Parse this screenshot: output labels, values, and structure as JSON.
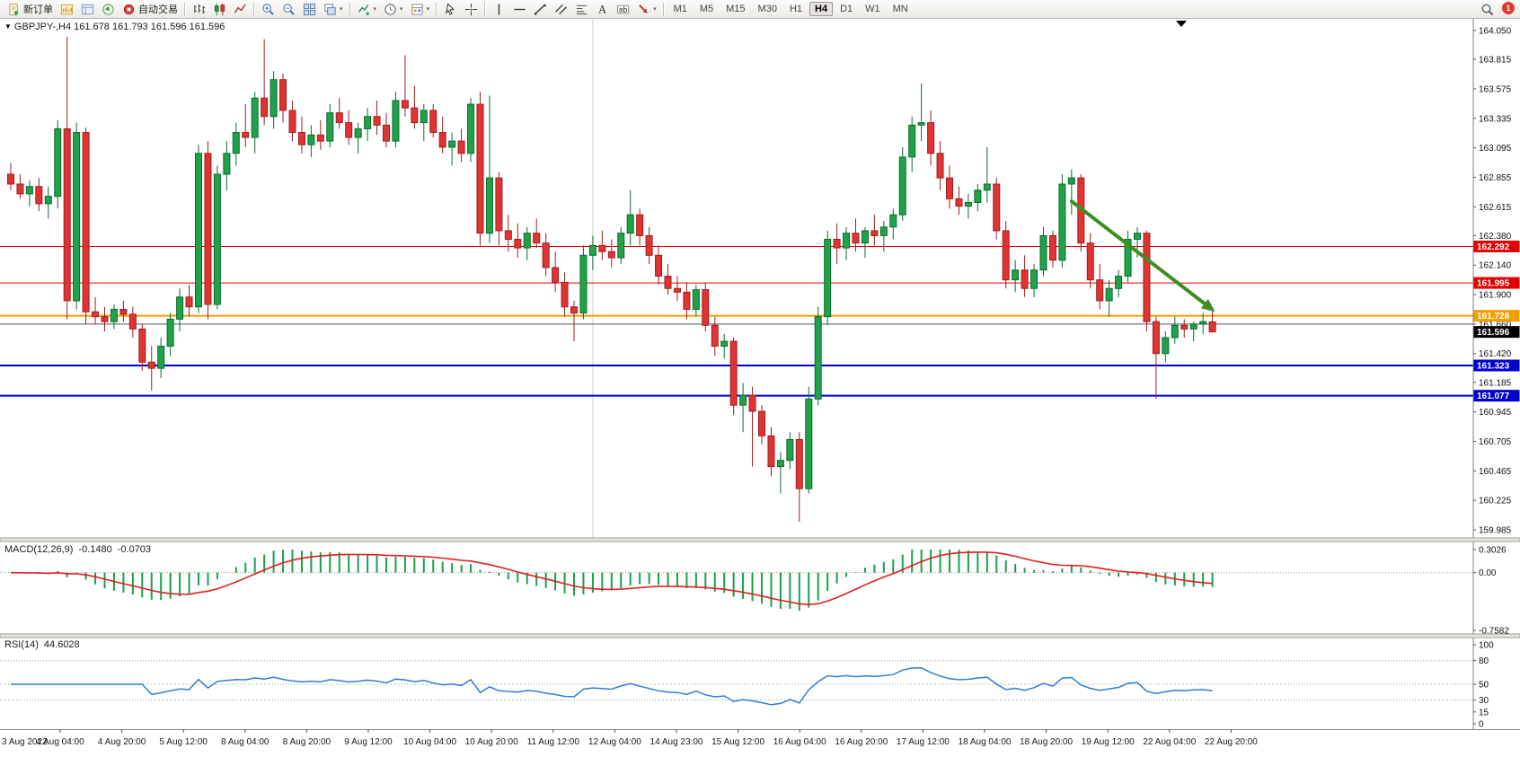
{
  "app": {
    "badge_count": "1"
  },
  "toolbar": {
    "caret_glyph": "▾",
    "items": [
      {
        "t": "btn",
        "name": "new-order-button",
        "icon": "new-order",
        "label": "新订单"
      },
      {
        "t": "icon",
        "name": "market-watch-icon",
        "icon": "market-watch"
      },
      {
        "t": "icon",
        "name": "data-window-icon",
        "icon": "data-window"
      },
      {
        "t": "icon",
        "name": "navigator-icon",
        "icon": "navigator"
      },
      {
        "t": "btn",
        "name": "auto-trading-button",
        "icon": "auto-trading",
        "label": "自动交易"
      },
      {
        "t": "sep",
        "name": "toolbar-separator"
      },
      {
        "t": "icon",
        "name": "bar-chart-icon",
        "icon": "bars"
      },
      {
        "t": "icon",
        "name": "candlestick-chart-icon",
        "icon": "candles"
      },
      {
        "t": "icon",
        "name": "line-chart-icon",
        "icon": "line"
      },
      {
        "t": "sep",
        "name": "toolbar-separator"
      },
      {
        "t": "icon",
        "name": "zoom-in-icon",
        "icon": "zoom-in"
      },
      {
        "t": "icon",
        "name": "zoom-out-icon",
        "icon": "zoom-out"
      },
      {
        "t": "icon",
        "name": "tile-windows-icon",
        "icon": "tile"
      },
      {
        "t": "icon",
        "name": "auto-arrange-icon",
        "icon": "cascade",
        "caret": true
      },
      {
        "t": "sep",
        "name": "toolbar-separator"
      },
      {
        "t": "icon",
        "name": "indicators-icon",
        "icon": "indicators",
        "caret": true
      },
      {
        "t": "icon",
        "name": "periods-icon",
        "icon": "clock",
        "caret": true
      },
      {
        "t": "icon",
        "name": "templates-icon",
        "icon": "templates",
        "caret": true
      },
      {
        "t": "sep",
        "name": "toolbar-separator"
      },
      {
        "t": "icon",
        "name": "cursor-icon",
        "icon": "cursor"
      },
      {
        "t": "icon",
        "name": "crosshair-icon",
        "icon": "crosshair"
      },
      {
        "t": "sep",
        "name": "toolbar-separator"
      },
      {
        "t": "icon",
        "name": "vertical-line-icon",
        "icon": "vline"
      },
      {
        "t": "icon",
        "name": "horizontal-line-icon",
        "icon": "hline"
      },
      {
        "t": "icon",
        "name": "trendline-icon",
        "icon": "tline"
      },
      {
        "t": "icon",
        "name": "equidistant-channel-icon",
        "icon": "channel"
      },
      {
        "t": "icon",
        "name": "fibonacci-icon",
        "icon": "fibo"
      },
      {
        "t": "icon",
        "name": "text-icon",
        "icon": "textA"
      },
      {
        "t": "icon",
        "name": "text-label-icon",
        "icon": "label"
      },
      {
        "t": "icon",
        "name": "arrows-icon",
        "icon": "arrows",
        "caret": true
      },
      {
        "t": "sep",
        "name": "toolbar-separator"
      },
      {
        "t": "tf",
        "name": "timeframe-m1-button",
        "label": "M1"
      },
      {
        "t": "tf",
        "name": "timeframe-m5-button",
        "label": "M5"
      },
      {
        "t": "tf",
        "name": "timeframe-m15-button",
        "label": "M15"
      },
      {
        "t": "tf",
        "name": "timeframe-m30-button",
        "label": "M30"
      },
      {
        "t": "tf",
        "name": "timeframe-h1-button",
        "label": "H1"
      },
      {
        "t": "tf",
        "name": "timeframe-h4-button",
        "label": "H4",
        "active": true
      },
      {
        "t": "tf",
        "name": "timeframe-d1-button",
        "label": "D1"
      },
      {
        "t": "tf",
        "name": "timeframe-w1-button",
        "label": "W1"
      },
      {
        "t": "tf",
        "name": "timeframe-mn-button",
        "label": "MN"
      },
      {
        "t": "push",
        "name": "toolbar-spacer"
      },
      {
        "t": "icon",
        "name": "search-icon",
        "icon": "search"
      },
      {
        "t": "badge",
        "name": "notification-badge",
        "label": "1"
      }
    ]
  },
  "chart": {
    "menu_glyph": "▼",
    "symbol_header": "GBPJPY-,H4  161.678 161.793 161.596 161.596"
  },
  "macd": {
    "name": "MACD(12,26,9)",
    "value_main": "-0.1480",
    "value_signal": "-0.0703",
    "axis_labels": [
      {
        "text": "0.3026",
        "value": 0.3026
      },
      {
        "text": "0.00",
        "value": 0
      },
      {
        "text": "-0.7582",
        "value": -0.7582
      }
    ]
  },
  "rsi": {
    "name": "RSI(14)",
    "value": "44.6028",
    "levels": [
      80,
      50,
      30
    ],
    "axis_labels": [
      {
        "text": "100",
        "value": 100
      },
      {
        "text": "80",
        "value": 80
      },
      {
        "text": "50",
        "value": 50
      },
      {
        "text": "30",
        "value": 30
      },
      {
        "text": "15",
        "value": 15
      },
      {
        "text": "0",
        "value": 0
      }
    ]
  },
  "chart_data": {
    "type": "candlestick",
    "symbol": "GBPJPY-",
    "timeframe": "H4",
    "current_ohlc": {
      "open": 161.678,
      "high": 161.793,
      "low": 161.596,
      "close": 161.596
    },
    "ylim": [
      159.985,
      164.05
    ],
    "price_axis_ticks": [
      "164.050",
      "163.815",
      "163.575",
      "163.335",
      "163.095",
      "162.855",
      "162.615",
      "162.380",
      "162.140",
      "161.900",
      "161.660",
      "161.420",
      "161.185",
      "160.945",
      "160.705",
      "160.465",
      "160.225",
      "159.985"
    ],
    "time_labels": [
      "3 Aug 2022",
      "4 Aug 04:00",
      "4 Aug 20:00",
      "5 Aug 12:00",
      "8 Aug 04:00",
      "8 Aug 20:00",
      "9 Aug 12:00",
      "10 Aug 04:00",
      "10 Aug 20:00",
      "11 Aug 12:00",
      "12 Aug 04:00",
      "14 Aug 23:00",
      "15 Aug 12:00",
      "16 Aug 04:00",
      "16 Aug 20:00",
      "17 Aug 12:00",
      "18 Aug 04:00",
      "18 Aug 20:00",
      "19 Aug 12:00",
      "22 Aug 04:00",
      "22 Aug 20:00"
    ],
    "horizontal_lines": [
      {
        "price": 162.292,
        "label": "162.292",
        "color": "#e00000",
        "width": 1,
        "tagged": true
      },
      {
        "price": 161.995,
        "label": "161.995",
        "color": "#e00000",
        "width": 1,
        "tagged": true
      },
      {
        "price": 161.728,
        "label": "161.728",
        "color": "#f0a000",
        "width": 2,
        "tagged": true
      },
      {
        "price": 161.66,
        "label": "",
        "color": "#555555",
        "width": 1,
        "tagged": false
      },
      {
        "price": 161.323,
        "label": "161.323",
        "color": "#0000cc",
        "width": 2,
        "tagged": true
      },
      {
        "price": 161.077,
        "label": "161.077",
        "color": "#0000cc",
        "width": 2,
        "tagged": true
      }
    ],
    "current_price_tag": {
      "price": 161.596,
      "label": "161.596",
      "color": "#000000"
    },
    "vertical_line": {
      "index": 62,
      "color": "#c3d9c3"
    },
    "annotation_arrow": {
      "from_index": 113,
      "from_price": 162.66,
      "to_index": 128.3,
      "to_price": 161.76,
      "color": "#3e8e22"
    },
    "indicators": {
      "macd": {
        "params": [
          12,
          26,
          9
        ],
        "main": -0.148,
        "signal": -0.0703
      },
      "rsi": {
        "period": 14,
        "value": 44.6028
      }
    },
    "candles": [
      [
        162.88,
        162.97,
        162.75,
        162.8
      ],
      [
        162.8,
        162.88,
        162.68,
        162.72
      ],
      [
        162.72,
        162.83,
        162.62,
        162.78
      ],
      [
        162.78,
        162.85,
        162.58,
        162.64
      ],
      [
        162.64,
        162.78,
        162.52,
        162.7
      ],
      [
        162.7,
        163.32,
        162.6,
        163.25
      ],
      [
        163.25,
        164.0,
        161.7,
        161.85
      ],
      [
        161.85,
        163.3,
        161.78,
        163.22
      ],
      [
        163.22,
        163.26,
        161.66,
        161.76
      ],
      [
        161.76,
        161.88,
        161.66,
        161.72
      ],
      [
        161.72,
        161.8,
        161.6,
        161.68
      ],
      [
        161.68,
        161.82,
        161.62,
        161.78
      ],
      [
        161.78,
        161.85,
        161.68,
        161.74
      ],
      [
        161.74,
        161.8,
        161.55,
        161.62
      ],
      [
        161.62,
        161.66,
        161.28,
        161.35
      ],
      [
        161.35,
        161.48,
        161.12,
        161.3
      ],
      [
        161.3,
        161.55,
        161.22,
        161.48
      ],
      [
        161.48,
        161.75,
        161.4,
        161.7
      ],
      [
        161.7,
        161.95,
        161.6,
        161.88
      ],
      [
        161.88,
        161.98,
        161.72,
        161.8
      ],
      [
        161.8,
        163.12,
        161.75,
        163.05
      ],
      [
        163.05,
        163.15,
        161.7,
        161.82
      ],
      [
        161.82,
        162.95,
        161.78,
        162.88
      ],
      [
        162.88,
        163.15,
        162.75,
        163.05
      ],
      [
        163.05,
        163.3,
        162.95,
        163.22
      ],
      [
        163.22,
        163.45,
        163.1,
        163.18
      ],
      [
        163.18,
        163.55,
        163.05,
        163.5
      ],
      [
        163.5,
        163.98,
        163.28,
        163.35
      ],
      [
        163.35,
        163.72,
        163.25,
        163.65
      ],
      [
        163.65,
        163.7,
        163.3,
        163.4
      ],
      [
        163.4,
        163.48,
        163.15,
        163.22
      ],
      [
        163.22,
        163.35,
        163.05,
        163.12
      ],
      [
        163.12,
        163.28,
        163.02,
        163.2
      ],
      [
        163.2,
        163.32,
        163.08,
        163.15
      ],
      [
        163.15,
        163.45,
        163.1,
        163.38
      ],
      [
        163.38,
        163.5,
        163.25,
        163.3
      ],
      [
        163.3,
        163.4,
        163.12,
        163.18
      ],
      [
        163.18,
        163.3,
        163.05,
        163.25
      ],
      [
        163.25,
        163.42,
        163.15,
        163.35
      ],
      [
        163.35,
        163.48,
        163.2,
        163.28
      ],
      [
        163.28,
        163.38,
        163.1,
        163.15
      ],
      [
        163.15,
        163.55,
        163.1,
        163.48
      ],
      [
        163.48,
        163.85,
        163.35,
        163.42
      ],
      [
        163.42,
        163.6,
        163.25,
        163.3
      ],
      [
        163.3,
        163.45,
        163.15,
        163.4
      ],
      [
        163.4,
        163.45,
        163.18,
        163.22
      ],
      [
        163.22,
        163.35,
        163.05,
        163.1
      ],
      [
        163.1,
        163.22,
        162.95,
        163.15
      ],
      [
        163.15,
        163.25,
        162.98,
        163.05
      ],
      [
        163.05,
        163.5,
        162.98,
        163.45
      ],
      [
        163.45,
        163.55,
        162.3,
        162.4
      ],
      [
        162.4,
        163.52,
        162.32,
        162.85
      ],
      [
        162.85,
        162.9,
        162.3,
        162.42
      ],
      [
        162.42,
        162.55,
        162.25,
        162.35
      ],
      [
        162.35,
        162.48,
        162.2,
        162.28
      ],
      [
        162.28,
        162.45,
        162.18,
        162.4
      ],
      [
        162.4,
        162.52,
        162.28,
        162.32
      ],
      [
        162.32,
        162.4,
        162.05,
        162.12
      ],
      [
        162.12,
        162.25,
        161.92,
        162.0
      ],
      [
        162.0,
        162.08,
        161.72,
        161.8
      ],
      [
        161.8,
        161.85,
        161.52,
        161.75
      ],
      [
        161.75,
        162.3,
        161.7,
        162.22
      ],
      [
        162.22,
        162.38,
        162.1,
        162.3
      ],
      [
        162.3,
        162.42,
        162.18,
        162.25
      ],
      [
        162.25,
        162.35,
        162.12,
        162.2
      ],
      [
        162.2,
        162.45,
        162.15,
        162.4
      ],
      [
        162.4,
        162.75,
        162.3,
        162.55
      ],
      [
        162.55,
        162.6,
        162.3,
        162.38
      ],
      [
        162.38,
        162.45,
        162.15,
        162.22
      ],
      [
        162.22,
        162.3,
        161.98,
        162.05
      ],
      [
        162.05,
        162.15,
        161.9,
        161.95
      ],
      [
        161.95,
        162.05,
        161.85,
        161.92
      ],
      [
        161.92,
        162.0,
        161.7,
        161.78
      ],
      [
        161.78,
        161.98,
        161.72,
        161.94
      ],
      [
        161.94,
        162.0,
        161.6,
        161.65
      ],
      [
        161.65,
        161.72,
        161.4,
        161.48
      ],
      [
        161.48,
        161.58,
        161.38,
        161.52
      ],
      [
        161.52,
        161.55,
        160.92,
        161.0
      ],
      [
        161.0,
        161.18,
        160.78,
        161.08
      ],
      [
        161.08,
        161.15,
        160.5,
        160.95
      ],
      [
        160.95,
        161.0,
        160.68,
        160.75
      ],
      [
        160.75,
        160.82,
        160.42,
        160.5
      ],
      [
        160.5,
        160.62,
        160.28,
        160.55
      ],
      [
        160.55,
        160.78,
        160.48,
        160.72
      ],
      [
        160.72,
        160.78,
        160.05,
        160.32
      ],
      [
        160.32,
        161.15,
        160.28,
        161.05
      ],
      [
        161.05,
        161.8,
        161.0,
        161.72
      ],
      [
        161.72,
        162.42,
        161.65,
        162.35
      ],
      [
        162.35,
        162.48,
        162.15,
        162.28
      ],
      [
        162.28,
        162.45,
        162.18,
        162.4
      ],
      [
        162.4,
        162.52,
        162.25,
        162.32
      ],
      [
        162.32,
        162.45,
        162.2,
        162.42
      ],
      [
        162.42,
        162.55,
        162.3,
        162.38
      ],
      [
        162.38,
        162.5,
        162.25,
        162.45
      ],
      [
        162.45,
        162.6,
        162.35,
        162.55
      ],
      [
        162.55,
        163.1,
        162.5,
        163.02
      ],
      [
        163.02,
        163.35,
        162.9,
        163.28
      ],
      [
        163.28,
        163.62,
        163.15,
        163.3
      ],
      [
        163.3,
        163.4,
        162.95,
        163.05
      ],
      [
        163.05,
        163.15,
        162.75,
        162.85
      ],
      [
        162.85,
        162.95,
        162.6,
        162.68
      ],
      [
        162.68,
        162.78,
        162.55,
        162.62
      ],
      [
        162.62,
        162.72,
        162.52,
        162.65
      ],
      [
        162.65,
        162.8,
        162.58,
        162.75
      ],
      [
        162.75,
        163.1,
        162.65,
        162.8
      ],
      [
        162.8,
        162.85,
        162.35,
        162.42
      ],
      [
        162.42,
        162.5,
        161.95,
        162.02
      ],
      [
        162.02,
        162.18,
        161.92,
        162.1
      ],
      [
        162.1,
        162.22,
        161.88,
        161.95
      ],
      [
        161.95,
        162.15,
        161.88,
        162.1
      ],
      [
        162.1,
        162.45,
        162.05,
        162.38
      ],
      [
        162.38,
        162.42,
        162.12,
        162.18
      ],
      [
        162.18,
        162.88,
        162.12,
        162.8
      ],
      [
        162.8,
        162.92,
        162.55,
        162.85
      ],
      [
        162.85,
        162.88,
        162.25,
        162.32
      ],
      [
        162.32,
        162.4,
        161.95,
        162.02
      ],
      [
        162.02,
        162.15,
        161.78,
        161.85
      ],
      [
        161.85,
        162.02,
        161.72,
        161.95
      ],
      [
        161.95,
        162.1,
        161.88,
        162.05
      ],
      [
        162.05,
        162.42,
        162.0,
        162.35
      ],
      [
        162.35,
        162.45,
        162.2,
        162.4
      ],
      [
        162.4,
        162.42,
        161.6,
        161.68
      ],
      [
        161.68,
        161.72,
        161.05,
        161.42
      ],
      [
        161.42,
        161.6,
        161.35,
        161.55
      ],
      [
        161.55,
        161.72,
        161.5,
        161.65
      ],
      [
        161.65,
        161.7,
        161.55,
        161.62
      ],
      [
        161.62,
        161.68,
        161.52,
        161.66
      ],
      [
        161.66,
        161.75,
        161.58,
        161.68
      ],
      [
        161.678,
        161.793,
        161.596,
        161.596
      ]
    ]
  }
}
